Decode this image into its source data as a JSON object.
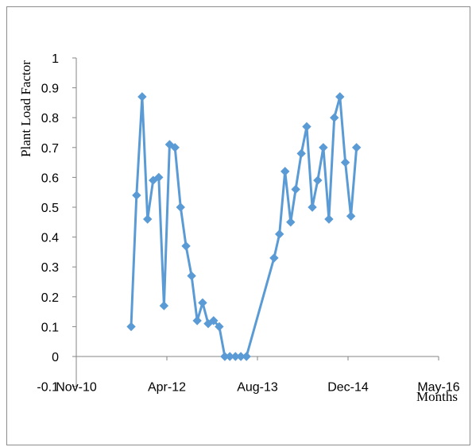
{
  "chart_data": {
    "type": "line",
    "xlabel": "Months",
    "ylabel": "Plant Load Factor",
    "y_ticks": [
      "-0.1",
      "0",
      "0.1",
      "0.2",
      "0.3",
      "0.4",
      "0.5",
      "0.6",
      "0.7",
      "0.8",
      "0.9",
      "1"
    ],
    "ylim": [
      -0.1,
      1
    ],
    "x_ticks": [
      "Nov-10",
      "Apr-12",
      "Aug-13",
      "Dec-14",
      "May-16"
    ],
    "xlim": [
      "2010-11-01",
      "2016-05-01"
    ],
    "grid": false,
    "series": [
      {
        "color": "#5b9bd5",
        "marker": "diamond",
        "points": [
          {
            "x": "2011-09-01",
            "y": 0.1
          },
          {
            "x": "2011-10-01",
            "y": 0.54
          },
          {
            "x": "2011-11-01",
            "y": 0.87
          },
          {
            "x": "2011-12-01",
            "y": 0.46
          },
          {
            "x": "2012-01-01",
            "y": 0.59
          },
          {
            "x": "2012-02-01",
            "y": 0.6
          },
          {
            "x": "2012-03-01",
            "y": 0.17
          },
          {
            "x": "2012-04-01",
            "y": 0.71
          },
          {
            "x": "2012-05-01",
            "y": 0.7
          },
          {
            "x": "2012-06-01",
            "y": 0.5
          },
          {
            "x": "2012-07-01",
            "y": 0.37
          },
          {
            "x": "2012-08-01",
            "y": 0.27
          },
          {
            "x": "2012-09-01",
            "y": 0.12
          },
          {
            "x": "2012-10-01",
            "y": 0.18
          },
          {
            "x": "2012-11-01",
            "y": 0.11
          },
          {
            "x": "2012-12-01",
            "y": 0.12
          },
          {
            "x": "2013-01-01",
            "y": 0.1
          },
          {
            "x": "2013-02-01",
            "y": 0.0
          },
          {
            "x": "2013-03-01",
            "y": 0.0
          },
          {
            "x": "2013-04-01",
            "y": 0.0
          },
          {
            "x": "2013-05-01",
            "y": 0.0
          },
          {
            "x": "2013-06-01",
            "y": 0.0
          },
          {
            "x": "2013-11-01",
            "y": 0.33
          },
          {
            "x": "2013-12-01",
            "y": 0.41
          },
          {
            "x": "2014-01-01",
            "y": 0.62
          },
          {
            "x": "2014-02-01",
            "y": 0.45
          },
          {
            "x": "2014-03-01",
            "y": 0.56
          },
          {
            "x": "2014-04-01",
            "y": 0.68
          },
          {
            "x": "2014-05-01",
            "y": 0.77
          },
          {
            "x": "2014-06-01",
            "y": 0.5
          },
          {
            "x": "2014-07-01",
            "y": 0.59
          },
          {
            "x": "2014-08-01",
            "y": 0.7
          },
          {
            "x": "2014-09-01",
            "y": 0.46
          },
          {
            "x": "2014-10-01",
            "y": 0.8
          },
          {
            "x": "2014-11-01",
            "y": 0.87
          },
          {
            "x": "2014-12-01",
            "y": 0.65
          },
          {
            "x": "2015-01-01",
            "y": 0.47
          },
          {
            "x": "2015-02-01",
            "y": 0.7
          }
        ]
      }
    ]
  }
}
